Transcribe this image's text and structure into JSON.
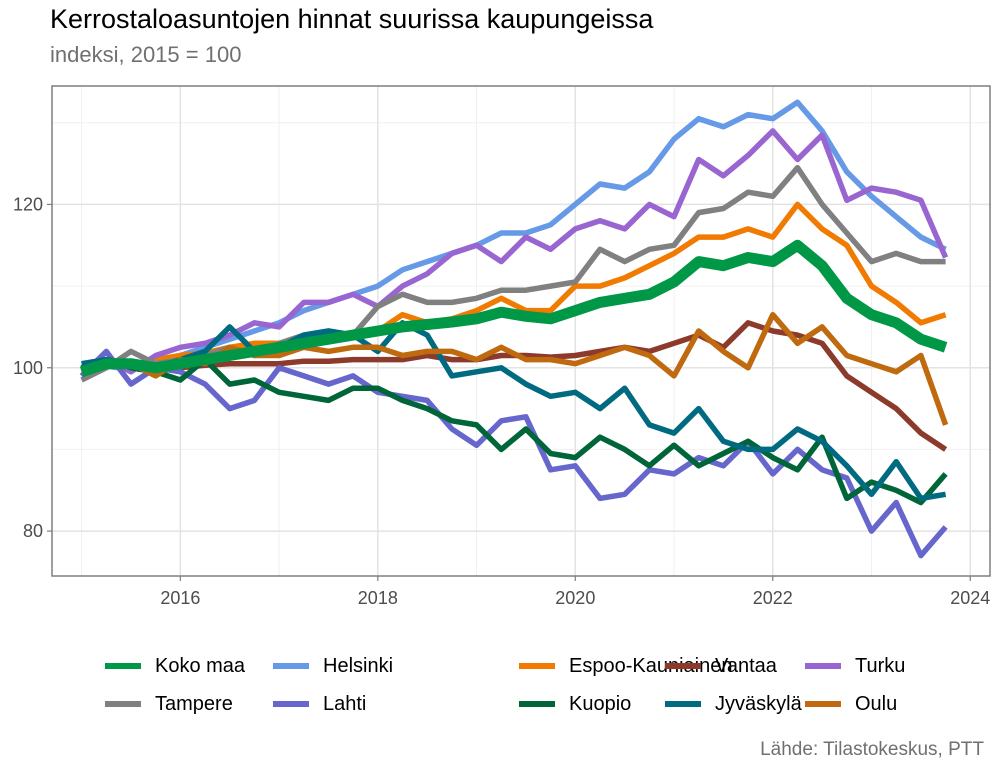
{
  "title": "Kerrostaloasuntojen hinnat suurissa kaupungeissa",
  "subtitle": "indeksi, 2015 = 100",
  "caption": "Lähde: Tilastokeskus, PTT",
  "chart_data": {
    "type": "line",
    "title": "Kerrostaloasuntojen hinnat suurissa kaupungeissa",
    "subtitle": "indeksi, 2015 = 100",
    "xlabel": "",
    "ylabel": "",
    "x_ticks": [
      "2016",
      "2018",
      "2020",
      "2022",
      "2024"
    ],
    "x_tick_values": [
      2016,
      2018,
      2020,
      2022,
      2024
    ],
    "y_ticks": [
      "80",
      "100",
      "120"
    ],
    "y_tick_values": [
      80,
      100,
      120
    ],
    "xlim": [
      2014.7,
      2024.2
    ],
    "ylim": [
      74.5,
      134.5
    ],
    "grid": true,
    "legend_position": "bottom",
    "x": [
      2015.0,
      2015.25,
      2015.5,
      2015.75,
      2016.0,
      2016.25,
      2016.5,
      2016.75,
      2017.0,
      2017.25,
      2017.5,
      2017.75,
      2018.0,
      2018.25,
      2018.5,
      2018.75,
      2019.0,
      2019.25,
      2019.5,
      2019.75,
      2020.0,
      2020.25,
      2020.5,
      2020.75,
      2021.0,
      2021.25,
      2021.5,
      2021.75,
      2022.0,
      2022.25,
      2022.5,
      2022.75,
      2023.0,
      2023.25,
      2023.5,
      2023.75
    ],
    "series": [
      {
        "name": "Koko maa",
        "color": "#009846",
        "values": [
          99.5,
          100.5,
          100.5,
          100.0,
          100.5,
          101.0,
          101.5,
          102.0,
          102.5,
          103.0,
          103.5,
          104.0,
          104.5,
          105.0,
          105.3,
          105.6,
          106.0,
          106.8,
          106.3,
          106.0,
          107.0,
          108.0,
          108.5,
          109.0,
          110.5,
          113.0,
          112.5,
          113.5,
          113.0,
          115.0,
          112.5,
          108.5,
          106.5,
          105.5,
          103.5,
          102.5
        ]
      },
      {
        "name": "Helsinki",
        "color": "#6699e6",
        "values": [
          100.0,
          100.2,
          99.8,
          100.5,
          101.5,
          102.5,
          103.5,
          104.5,
          105.5,
          107.0,
          108.0,
          109.0,
          110.0,
          112.0,
          113.0,
          114.0,
          115.0,
          116.5,
          116.5,
          117.5,
          120.0,
          122.5,
          122.0,
          124.0,
          128.0,
          130.5,
          129.5,
          131.0,
          130.5,
          132.5,
          129.0,
          124.0,
          121.0,
          118.5,
          116.0,
          114.5
        ]
      },
      {
        "name": "Espoo-Kauniainen",
        "color": "#f07b00",
        "values": [
          100.0,
          100.5,
          100.3,
          101.0,
          101.5,
          101.8,
          102.5,
          103.0,
          103.0,
          103.5,
          103.8,
          104.0,
          104.5,
          106.5,
          105.5,
          106.0,
          107.0,
          108.5,
          107.0,
          107.0,
          110.0,
          110.0,
          111.0,
          112.5,
          114.0,
          116.0,
          116.0,
          117.0,
          116.0,
          120.0,
          117.0,
          115.0,
          110.0,
          108.0,
          105.5,
          106.5
        ]
      },
      {
        "name": "Vantaa",
        "color": "#8c3a2b",
        "values": [
          100.0,
          100.5,
          100.0,
          99.5,
          100.0,
          100.3,
          100.5,
          100.5,
          100.5,
          100.8,
          100.8,
          101.0,
          101.0,
          101.0,
          101.5,
          101.0,
          101.0,
          101.5,
          101.5,
          101.3,
          101.5,
          102.0,
          102.5,
          102.0,
          103.0,
          104.0,
          102.5,
          105.5,
          104.5,
          104.0,
          103.0,
          99.0,
          97.0,
          95.0,
          92.0,
          90.0
        ]
      },
      {
        "name": "Turku",
        "color": "#9966d1",
        "values": [
          100.0,
          101.0,
          99.5,
          101.5,
          102.5,
          103.0,
          104.0,
          105.5,
          105.0,
          108.0,
          108.0,
          109.0,
          107.5,
          110.0,
          111.5,
          114.0,
          115.0,
          113.0,
          116.0,
          114.5,
          117.0,
          118.0,
          117.0,
          120.0,
          118.5,
          125.5,
          123.5,
          126.0,
          129.0,
          125.5,
          128.5,
          120.5,
          122.0,
          121.5,
          120.5,
          113.5
        ]
      },
      {
        "name": "Tampere",
        "color": "#808080",
        "values": [
          98.5,
          100.0,
          102.0,
          100.5,
          101.0,
          101.5,
          102.5,
          101.5,
          103.0,
          104.0,
          104.5,
          104.0,
          107.5,
          109.0,
          108.0,
          108.0,
          108.5,
          109.5,
          109.5,
          110.0,
          110.5,
          114.5,
          113.0,
          114.5,
          115.0,
          119.0,
          119.5,
          121.5,
          121.0,
          124.5,
          120.0,
          116.5,
          113.0,
          114.0,
          113.0,
          113.0
        ]
      },
      {
        "name": "Lahti",
        "color": "#6666cc",
        "values": [
          99.0,
          102.0,
          98.0,
          100.0,
          99.5,
          98.0,
          95.0,
          96.0,
          100.0,
          99.0,
          98.0,
          99.0,
          97.0,
          96.5,
          96.0,
          92.5,
          90.5,
          93.5,
          94.0,
          87.5,
          88.0,
          84.0,
          84.5,
          87.5,
          87.0,
          89.0,
          88.0,
          91.0,
          87.0,
          90.0,
          87.5,
          86.5,
          80.0,
          83.5,
          77.0,
          80.5
        ]
      },
      {
        "name": "Kuopio",
        "color": "#00663a",
        "values": [
          100.0,
          101.0,
          100.0,
          99.5,
          98.5,
          101.0,
          98.0,
          98.5,
          97.0,
          96.5,
          96.0,
          97.5,
          97.5,
          96.0,
          95.0,
          93.5,
          93.0,
          90.0,
          92.5,
          89.5,
          89.0,
          91.5,
          90.0,
          88.0,
          90.5,
          88.0,
          89.5,
          91.0,
          89.0,
          87.5,
          91.5,
          84.0,
          86.0,
          85.0,
          83.5,
          87.0
        ]
      },
      {
        "name": "Jyväskylä",
        "color": "#006b80",
        "values": [
          100.5,
          101.0,
          100.5,
          100.0,
          101.0,
          102.0,
          105.0,
          102.0,
          102.5,
          104.0,
          104.5,
          104.0,
          102.0,
          105.5,
          104.0,
          99.0,
          99.5,
          100.0,
          98.0,
          96.5,
          97.0,
          95.0,
          97.5,
          93.0,
          92.0,
          95.0,
          91.0,
          90.0,
          90.0,
          92.5,
          91.0,
          88.0,
          84.5,
          88.5,
          84.0,
          84.5
        ]
      },
      {
        "name": "Oulu",
        "color": "#c06a0f",
        "values": [
          99.5,
          100.5,
          100.5,
          99.0,
          101.0,
          100.5,
          102.5,
          101.5,
          101.5,
          102.5,
          102.0,
          102.5,
          102.5,
          101.5,
          102.0,
          102.0,
          101.0,
          102.5,
          101.0,
          101.0,
          100.5,
          101.5,
          102.5,
          101.5,
          99.0,
          104.5,
          102.0,
          100.0,
          106.5,
          103.0,
          105.0,
          101.5,
          100.5,
          99.5,
          101.5,
          93.0
        ]
      }
    ]
  }
}
